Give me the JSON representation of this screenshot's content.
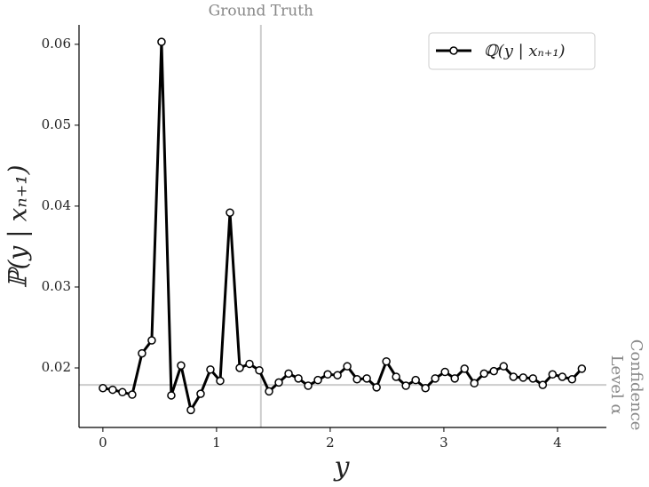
{
  "chart_data": {
    "type": "line",
    "xlabel": "y",
    "ylabel": "ℙ(y | xₙ₊₁)",
    "x": [
      0,
      0.086,
      0.172,
      0.258,
      0.344,
      0.43,
      0.516,
      0.602,
      0.688,
      0.774,
      0.86,
      0.946,
      1.032,
      1.118,
      1.204,
      1.29,
      1.376,
      1.462,
      1.548,
      1.634,
      1.72,
      1.806,
      1.892,
      1.978,
      2.064,
      2.15,
      2.236,
      2.322,
      2.408,
      2.494,
      2.58,
      2.666,
      2.752,
      2.838,
      2.924,
      3.01,
      3.096,
      3.182,
      3.268,
      3.354,
      3.44,
      3.526,
      3.612,
      3.698,
      3.784,
      3.87,
      3.956,
      4.042,
      4.128,
      4.214
    ],
    "series": [
      {
        "name": "ℚ(y | xₙ₊₁)",
        "color": "#000000",
        "values": [
          0.0175,
          0.0173,
          0.017,
          0.0167,
          0.0218,
          0.0234,
          0.0603,
          0.0166,
          0.0203,
          0.0148,
          0.0168,
          0.0198,
          0.0184,
          0.0392,
          0.02,
          0.0205,
          0.0197,
          0.0171,
          0.0182,
          0.0193,
          0.0187,
          0.0178,
          0.0185,
          0.0192,
          0.0191,
          0.0202,
          0.0186,
          0.0187,
          0.0176,
          0.0208,
          0.0189,
          0.0178,
          0.0185,
          0.0175,
          0.0187,
          0.0195,
          0.0187,
          0.0199,
          0.0181,
          0.0193,
          0.0196,
          0.0202,
          0.0189,
          0.0188,
          0.0187,
          0.0179,
          0.0192,
          0.0189,
          0.0186,
          0.0199
        ]
      }
    ],
    "xlim": [
      -0.21,
      4.43
    ],
    "ylim": [
      0.01264,
      0.0624
    ],
    "xticks": [
      0,
      1,
      2,
      3,
      4
    ],
    "yticks": [
      0.02,
      0.03,
      0.04,
      0.05,
      0.06
    ],
    "legend": "upper right",
    "reference_lines": [
      {
        "label": [
          "Ground Truth"
        ],
        "x": 1.39,
        "color": "#cccccc"
      },
      {
        "label": [
          "Confidence",
          "Level α"
        ],
        "y": 0.0179,
        "color": "#cccccc"
      }
    ]
  }
}
